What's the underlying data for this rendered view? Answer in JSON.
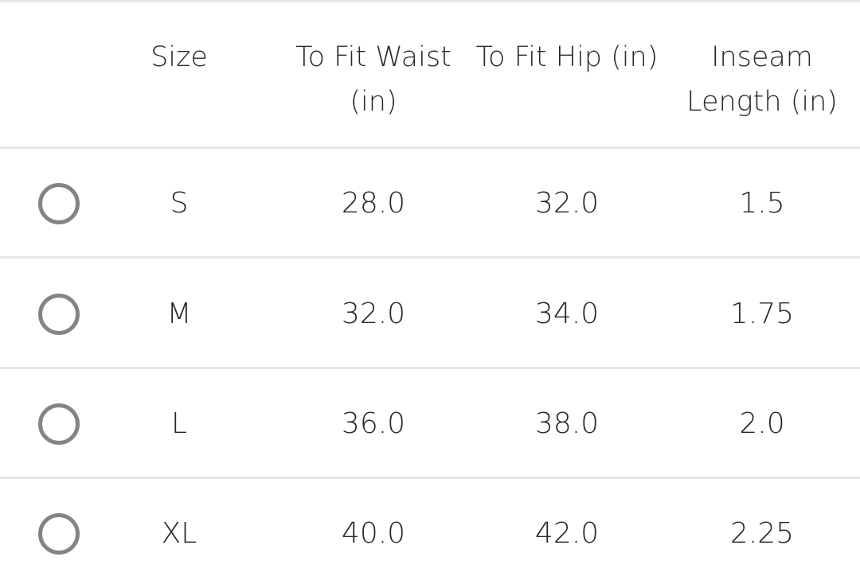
{
  "table": {
    "headers": [
      "Size",
      "To Fit Waist (in)",
      "To Fit Hip (in)",
      "Inseam Length (in)"
    ],
    "header_lines": [
      [
        "Size"
      ],
      [
        "To Fit Waist",
        "(in)"
      ],
      [
        "To Fit Hip (in)"
      ],
      [
        "Inseam",
        "Length (in)"
      ]
    ],
    "rows": [
      {
        "size": "S",
        "waist": "28.0",
        "hip": "32.0",
        "inseam": "1.5",
        "selected": false
      },
      {
        "size": "M",
        "waist": "32.0",
        "hip": "34.0",
        "inseam": "1.75",
        "selected": false
      },
      {
        "size": "L",
        "waist": "36.0",
        "hip": "38.0",
        "inseam": "2.0",
        "selected": false
      },
      {
        "size": "XL",
        "waist": "40.0",
        "hip": "42.0",
        "inseam": "2.25",
        "selected": false
      }
    ]
  },
  "colors": {
    "radio": "#838388",
    "divider": "#e6e6e8",
    "text": "#26262b"
  }
}
